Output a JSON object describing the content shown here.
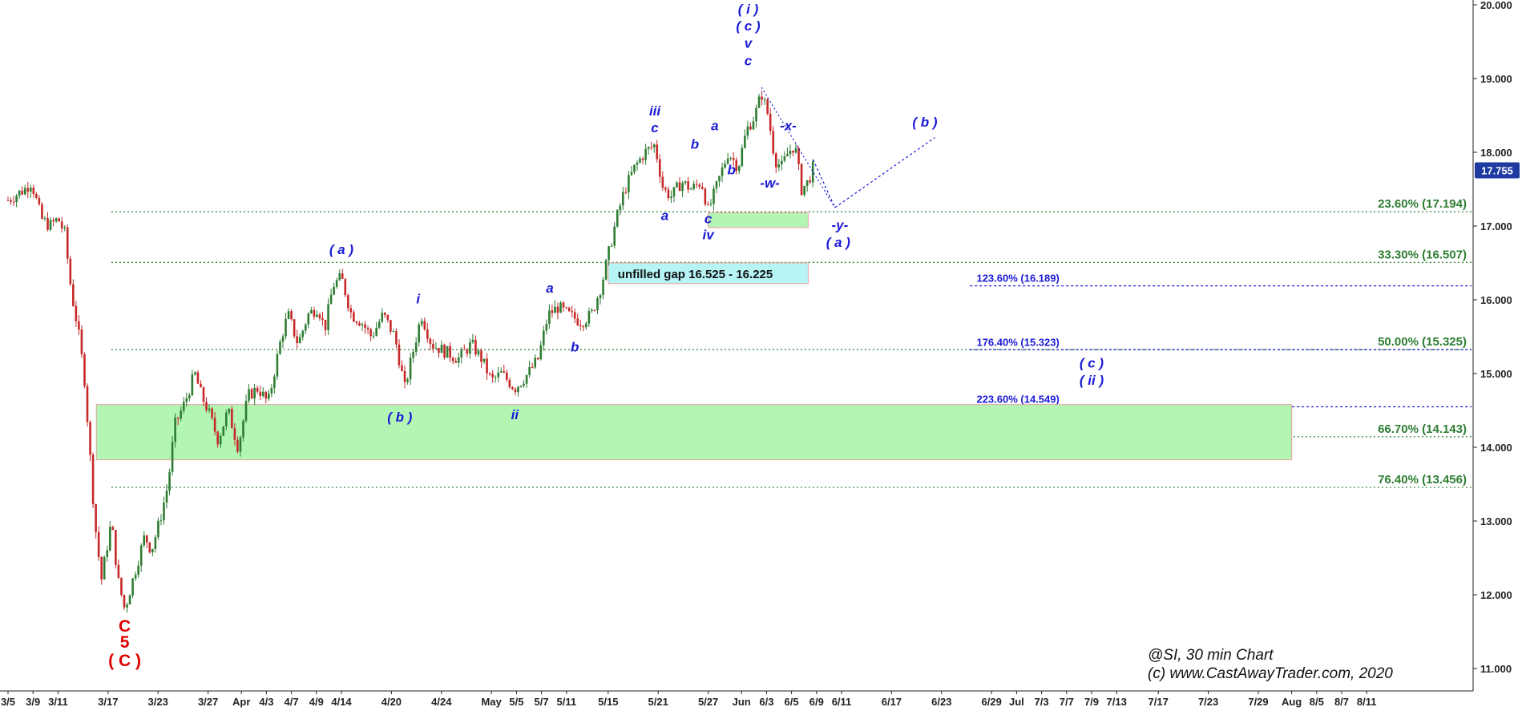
{
  "chart_data": {
    "type": "candlestick",
    "title": "@SI, 30 min Chart",
    "copyright": "(c) www.CastAwayTrader.com, 2020",
    "last_price": "17.755",
    "colors": {
      "up": "#2e7d32",
      "down": "#c62828",
      "fib": "#2e7d32",
      "ext": "#1a1ad6",
      "wave": "#1a1ad6",
      "major": "#e00000",
      "zone": "#b3f5b3",
      "gap": "#b7f4f6"
    },
    "y_axis": {
      "min": 11.0,
      "max": 20.0,
      "ticks": [
        "11.000",
        "12.000",
        "13.000",
        "14.000",
        "15.000",
        "16.000",
        "17.000",
        "18.000",
        "19.000",
        "20.000"
      ]
    },
    "x_ticks": [
      {
        "label": "3/5",
        "i": 0
      },
      {
        "label": "3/9",
        "i": 1.5
      },
      {
        "label": "3/11",
        "i": 3
      },
      {
        "label": "3/17",
        "i": 6
      },
      {
        "label": "3/23",
        "i": 9
      },
      {
        "label": "3/27",
        "i": 12
      },
      {
        "label": "Apr",
        "i": 14
      },
      {
        "label": "4/3",
        "i": 15.5
      },
      {
        "label": "4/7",
        "i": 17
      },
      {
        "label": "4/9",
        "i": 18.5
      },
      {
        "label": "4/14",
        "i": 20
      },
      {
        "label": "4/20",
        "i": 23
      },
      {
        "label": "4/24",
        "i": 26
      },
      {
        "label": "May",
        "i": 29
      },
      {
        "label": "5/5",
        "i": 30.5
      },
      {
        "label": "5/7",
        "i": 32
      },
      {
        "label": "5/11",
        "i": 33.5
      },
      {
        "label": "5/15",
        "i": 36
      },
      {
        "label": "5/21",
        "i": 39
      },
      {
        "label": "5/27",
        "i": 42
      },
      {
        "label": "Jun",
        "i": 44
      },
      {
        "label": "6/3",
        "i": 45.5
      },
      {
        "label": "6/5",
        "i": 47
      },
      {
        "label": "6/9",
        "i": 48.5
      },
      {
        "label": "6/11",
        "i": 50
      },
      {
        "label": "6/17",
        "i": 53
      },
      {
        "label": "6/23",
        "i": 56
      },
      {
        "label": "6/29",
        "i": 59
      },
      {
        "label": "Jul",
        "i": 60.5
      },
      {
        "label": "7/3",
        "i": 62
      },
      {
        "label": "7/7",
        "i": 63.5
      },
      {
        "label": "7/9",
        "i": 65
      },
      {
        "label": "7/13",
        "i": 66.5
      },
      {
        "label": "7/17",
        "i": 69
      },
      {
        "label": "7/23",
        "i": 72
      },
      {
        "label": "7/29",
        "i": 75
      },
      {
        "label": "Aug",
        "i": 77
      },
      {
        "label": "8/5",
        "i": 78.5
      },
      {
        "label": "8/7",
        "i": 80
      },
      {
        "label": "8/11",
        "i": 81.5
      }
    ],
    "price_path": [
      [
        0.0,
        17.35
      ],
      [
        1.0,
        17.5
      ],
      [
        1.4,
        17.6
      ],
      [
        2.0,
        17.1
      ],
      [
        2.5,
        17.0
      ],
      [
        3.0,
        17.1
      ],
      [
        3.4,
        16.9
      ],
      [
        3.8,
        16.1
      ],
      [
        4.2,
        15.6
      ],
      [
        4.6,
        14.9
      ],
      [
        5.2,
        13.0
      ],
      [
        5.6,
        12.2
      ],
      [
        6.2,
        13.0
      ],
      [
        6.6,
        12.2
      ],
      [
        7.0,
        11.8
      ],
      [
        7.6,
        12.3
      ],
      [
        8.2,
        12.8
      ],
      [
        8.6,
        12.6
      ],
      [
        9.1,
        13.0
      ],
      [
        9.6,
        13.5
      ],
      [
        10.0,
        14.3
      ],
      [
        10.6,
        14.6
      ],
      [
        11.2,
        15.0
      ],
      [
        11.6,
        14.7
      ],
      [
        12.0,
        14.5
      ],
      [
        12.6,
        14.1
      ],
      [
        13.2,
        14.5
      ],
      [
        13.8,
        14.0
      ],
      [
        14.4,
        14.7
      ],
      [
        15.0,
        14.8
      ],
      [
        15.6,
        14.6
      ],
      [
        16.4,
        15.5
      ],
      [
        16.8,
        15.8
      ],
      [
        17.4,
        15.4
      ],
      [
        18.0,
        15.8
      ],
      [
        18.6,
        15.9
      ],
      [
        19.0,
        15.6
      ],
      [
        19.5,
        16.2
      ],
      [
        20.0,
        16.3
      ],
      [
        20.6,
        15.8
      ],
      [
        21.2,
        15.7
      ],
      [
        21.8,
        15.5
      ],
      [
        22.5,
        15.8
      ],
      [
        23.2,
        15.5
      ],
      [
        23.8,
        14.8
      ],
      [
        24.3,
        15.3
      ],
      [
        24.8,
        15.8
      ],
      [
        25.4,
        15.4
      ],
      [
        26.2,
        15.3
      ],
      [
        27.0,
        15.2
      ],
      [
        27.8,
        15.4
      ],
      [
        28.4,
        15.2
      ],
      [
        29.0,
        14.9
      ],
      [
        29.6,
        15.0
      ],
      [
        30.4,
        14.8
      ],
      [
        31.2,
        15.0
      ],
      [
        31.8,
        15.2
      ],
      [
        32.4,
        15.8
      ],
      [
        33.0,
        15.9
      ],
      [
        33.6,
        15.8
      ],
      [
        34.4,
        15.7
      ],
      [
        35.0,
        15.8
      ],
      [
        35.6,
        16.2
      ],
      [
        36.0,
        16.6
      ],
      [
        36.5,
        17.1
      ],
      [
        37.0,
        17.5
      ],
      [
        37.6,
        17.8
      ],
      [
        38.2,
        18.0
      ],
      [
        38.8,
        18.1
      ],
      [
        39.3,
        17.5
      ],
      [
        39.8,
        17.4
      ],
      [
        40.4,
        17.6
      ],
      [
        41.0,
        17.5
      ],
      [
        41.6,
        17.6
      ],
      [
        42.0,
        17.2
      ],
      [
        42.6,
        17.6
      ],
      [
        43.2,
        18.0
      ],
      [
        43.8,
        17.8
      ],
      [
        44.3,
        18.3
      ],
      [
        44.8,
        18.5
      ],
      [
        45.2,
        18.8
      ],
      [
        45.6,
        18.5
      ],
      [
        46.0,
        17.9
      ],
      [
        46.4,
        17.8
      ],
      [
        46.8,
        18.0
      ],
      [
        47.2,
        18.1
      ],
      [
        47.6,
        17.5
      ],
      [
        48.0,
        17.6
      ],
      [
        48.3,
        17.8
      ]
    ],
    "projection": [
      [
        48.3,
        17.9
      ],
      [
        49.6,
        17.25
      ],
      [
        55.6,
        18.2
      ]
    ],
    "fib_levels": [
      {
        "label": "23.60% (17.194)",
        "value": 17.194
      },
      {
        "label": "33.30% (16.507)",
        "value": 16.507
      },
      {
        "label": "50.00% (15.325)",
        "value": 15.325
      },
      {
        "label": "66.70% (14.143)",
        "value": 14.143
      },
      {
        "label": "76.40% (13.456)",
        "value": 13.456
      }
    ],
    "ext_levels": [
      {
        "label": "123.60% (16.189)",
        "value": 16.189
      },
      {
        "label": "176.40% (15.323)",
        "value": 15.323
      },
      {
        "label": "223.60% (14.549)",
        "value": 14.549
      }
    ],
    "zones": [
      {
        "from": 5.3,
        "to": 77.0,
        "low": 13.83,
        "high": 14.58,
        "text": ""
      },
      {
        "from": 42.0,
        "to": 48.0,
        "low": 16.98,
        "high": 17.18,
        "text": ""
      },
      {
        "from": 36.0,
        "to": 48.0,
        "low": 16.22,
        "high": 16.5,
        "text": "unfilled gap 16.525 - 16.225"
      }
    ],
    "wave_labels": [
      {
        "text": "C",
        "i": 7.0,
        "v": 11.5,
        "major": true
      },
      {
        "text": "5",
        "i": 7.0,
        "v": 11.28,
        "major": true
      },
      {
        "text": "( C )",
        "i": 7.0,
        "v": 11.03,
        "major": true
      },
      {
        "text": "( a )",
        "i": 20.0,
        "v": 16.62
      },
      {
        "text": "( b )",
        "i": 23.5,
        "v": 14.35
      },
      {
        "text": "i",
        "i": 24.6,
        "v": 15.95
      },
      {
        "text": "ii",
        "i": 30.4,
        "v": 14.38
      },
      {
        "text": "a",
        "i": 32.5,
        "v": 16.1
      },
      {
        "text": "b",
        "i": 34.0,
        "v": 15.3
      },
      {
        "text": "iii",
        "i": 38.8,
        "v": 18.5
      },
      {
        "text": "c",
        "i": 38.8,
        "v": 18.27
      },
      {
        "text": "a",
        "i": 39.4,
        "v": 17.08
      },
      {
        "text": "b",
        "i": 41.2,
        "v": 18.05
      },
      {
        "text": "c",
        "i": 42.0,
        "v": 17.04
      },
      {
        "text": "iv",
        "i": 42.0,
        "v": 16.82
      },
      {
        "text": "a",
        "i": 42.4,
        "v": 18.3
      },
      {
        "text": "b",
        "i": 43.4,
        "v": 17.7
      },
      {
        "text": "c",
        "i": 44.4,
        "v": 19.18
      },
      {
        "text": "v",
        "i": 44.4,
        "v": 19.42
      },
      {
        "text": "( c )",
        "i": 44.4,
        "v": 19.65
      },
      {
        "text": "( i )",
        "i": 44.4,
        "v": 19.88
      },
      {
        "text": "-x-",
        "i": 46.8,
        "v": 18.3
      },
      {
        "text": "-w-",
        "i": 45.7,
        "v": 17.52
      },
      {
        "text": "-y-",
        "i": 49.9,
        "v": 16.95
      },
      {
        "text": "( a )",
        "i": 49.8,
        "v": 16.72
      },
      {
        "text": "( b )",
        "i": 55.0,
        "v": 18.35
      },
      {
        "text": "( c )",
        "i": 65.0,
        "v": 15.08
      },
      {
        "text": "( ii )",
        "i": 65.0,
        "v": 14.85
      }
    ]
  }
}
